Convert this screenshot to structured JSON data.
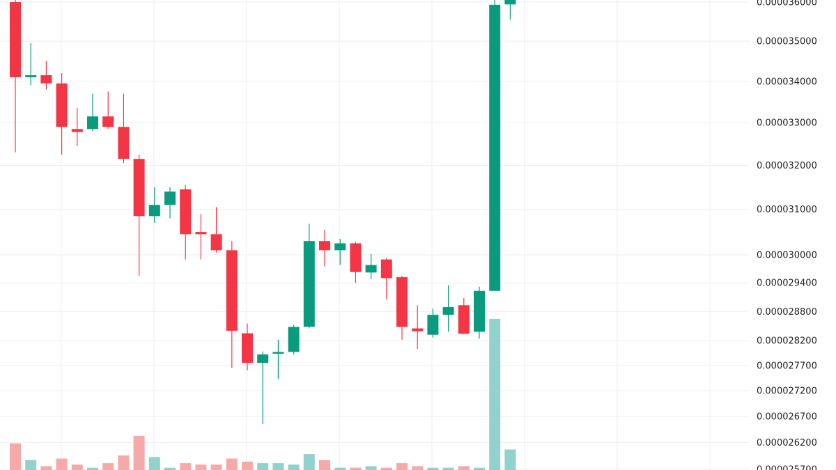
{
  "chart_data": {
    "type": "candlestick",
    "title": "",
    "xlabel": "",
    "ylabel": "",
    "y_axis_position": "right",
    "y_scale": "log",
    "ylim": [
      2.57e-05,
      3.6e-05
    ],
    "grid": true,
    "colors": {
      "up": "#0a9b7f",
      "down": "#f23645",
      "volume_up": "#92d2cc",
      "volume_down": "#f6a9a9",
      "grid": "#eeeeee",
      "background": "#ffffff"
    },
    "y_ticks": [
      {
        "value": 3.6e-05,
        "label": "0.000036000"
      },
      {
        "value": 3.5e-05,
        "label": "0.000035000"
      },
      {
        "value": 3.4e-05,
        "label": "0.000034000"
      },
      {
        "value": 3.3e-05,
        "label": "0.000033000"
      },
      {
        "value": 3.2e-05,
        "label": "0.000032000"
      },
      {
        "value": 3.1e-05,
        "label": "0.000031000"
      },
      {
        "value": 3e-05,
        "label": "0.000030000"
      },
      {
        "value": 2.94e-05,
        "label": "0.000029400"
      },
      {
        "value": 2.88e-05,
        "label": "0.000028800"
      },
      {
        "value": 2.82e-05,
        "label": "0.000028200"
      },
      {
        "value": 2.77e-05,
        "label": "0.000027700"
      },
      {
        "value": 2.72e-05,
        "label": "0.000027200"
      },
      {
        "value": 2.67e-05,
        "label": "0.000026700"
      },
      {
        "value": 2.62e-05,
        "label": "0.000026200"
      },
      {
        "value": 2.57e-05,
        "label": "0.000025700"
      }
    ],
    "series": [
      {
        "o": 3.6e-05,
        "h": 3.62e-05,
        "l": 3.23e-05,
        "c": 3.41e-05,
        "v": 0.18
      },
      {
        "o": 3.41e-05,
        "h": 3.495e-05,
        "l": 3.39e-05,
        "c": 3.415e-05,
        "v": 0.07
      },
      {
        "o": 3.415e-05,
        "h": 3.45e-05,
        "l": 3.38e-05,
        "c": 3.395e-05,
        "v": 0.03
      },
      {
        "o": 3.395e-05,
        "h": 3.42e-05,
        "l": 3.225e-05,
        "c": 3.29e-05,
        "v": 0.08
      },
      {
        "o": 3.285e-05,
        "h": 3.335e-05,
        "l": 3.245e-05,
        "c": 3.278e-05,
        "v": 0.04
      },
      {
        "o": 3.285e-05,
        "h": 3.37e-05,
        "l": 3.28e-05,
        "c": 3.315e-05,
        "v": 0.02
      },
      {
        "o": 3.315e-05,
        "h": 3.375e-05,
        "l": 3.285e-05,
        "c": 3.29e-05,
        "v": 0.05
      },
      {
        "o": 3.29e-05,
        "h": 3.37e-05,
        "l": 3.205e-05,
        "c": 3.215e-05,
        "v": 0.1
      },
      {
        "o": 3.215e-05,
        "h": 3.225e-05,
        "l": 2.955e-05,
        "c": 3.085e-05,
        "v": 0.23
      },
      {
        "o": 3.085e-05,
        "h": 3.15e-05,
        "l": 3.07e-05,
        "c": 3.11e-05,
        "v": 0.09
      },
      {
        "o": 3.11e-05,
        "h": 3.15e-05,
        "l": 3.08e-05,
        "c": 3.14e-05,
        "v": 0.02
      },
      {
        "o": 3.145e-05,
        "h": 3.155e-05,
        "l": 2.99e-05,
        "c": 3.045e-05,
        "v": 0.05
      },
      {
        "o": 3.05e-05,
        "h": 3.09e-05,
        "l": 2.99e-05,
        "c": 3.045e-05,
        "v": 0.04
      },
      {
        "o": 3.045e-05,
        "h": 3.105e-05,
        "l": 3.005e-05,
        "c": 3.01e-05,
        "v": 0.04
      },
      {
        "o": 3.01e-05,
        "h": 3.03e-05,
        "l": 2.765e-05,
        "c": 2.84e-05,
        "v": 0.08
      },
      {
        "o": 2.835e-05,
        "h": 2.855e-05,
        "l": 2.76e-05,
        "c": 2.775e-05,
        "v": 0.06
      },
      {
        "o": 2.775e-05,
        "h": 2.798e-05,
        "l": 2.655e-05,
        "c": 2.792e-05,
        "v": 0.05
      },
      {
        "o": 2.795e-05,
        "h": 2.822e-05,
        "l": 2.743e-05,
        "c": 2.797e-05,
        "v": 0.05
      },
      {
        "o": 2.797e-05,
        "h": 2.852e-05,
        "l": 2.792e-05,
        "c": 2.848e-05,
        "v": 0.04
      },
      {
        "o": 2.848e-05,
        "h": 3.068e-05,
        "l": 2.845e-05,
        "c": 3.03e-05,
        "v": 0.11
      },
      {
        "o": 3.03e-05,
        "h": 3.055e-05,
        "l": 2.975e-05,
        "c": 3.01e-05,
        "v": 0.07
      },
      {
        "o": 3.01e-05,
        "h": 3.035e-05,
        "l": 2.978e-05,
        "c": 3.025e-05,
        "v": 0.02
      },
      {
        "o": 3.025e-05,
        "h": 3.028e-05,
        "l": 2.94e-05,
        "c": 2.963e-05,
        "v": 0.02
      },
      {
        "o": 2.962e-05,
        "h": 3.002e-05,
        "l": 2.948e-05,
        "c": 2.978e-05,
        "v": 0.03
      },
      {
        "o": 2.99e-05,
        "h": 2.993e-05,
        "l": 2.905e-05,
        "c": 2.95e-05,
        "v": 0.02
      },
      {
        "o": 2.952e-05,
        "h": 2.955e-05,
        "l": 2.822e-05,
        "c": 2.848e-05,
        "v": 0.05
      },
      {
        "o": 2.845e-05,
        "h": 2.893e-05,
        "l": 2.803e-05,
        "c": 2.839e-05,
        "v": 0.03
      },
      {
        "o": 2.832e-05,
        "h": 2.886e-05,
        "l": 2.826e-05,
        "c": 2.873e-05,
        "v": 0.02
      },
      {
        "o": 2.873e-05,
        "h": 2.935e-05,
        "l": 2.838e-05,
        "c": 2.889e-05,
        "v": 0.02
      },
      {
        "o": 2.893e-05,
        "h": 2.908e-05,
        "l": 2.833e-05,
        "c": 2.834e-05,
        "v": 0.03
      },
      {
        "o": 2.838e-05,
        "h": 2.932e-05,
        "l": 2.824e-05,
        "c": 2.923e-05,
        "v": 0.02
      },
      {
        "o": 2.923e-05,
        "h": 3.62e-05,
        "l": 2.923e-05,
        "c": 3.593e-05,
        "v": 1.0
      },
      {
        "o": 3.594e-05,
        "h": 3.62e-05,
        "l": 3.555e-05,
        "c": 3.62e-05,
        "v": 0.14
      }
    ]
  }
}
